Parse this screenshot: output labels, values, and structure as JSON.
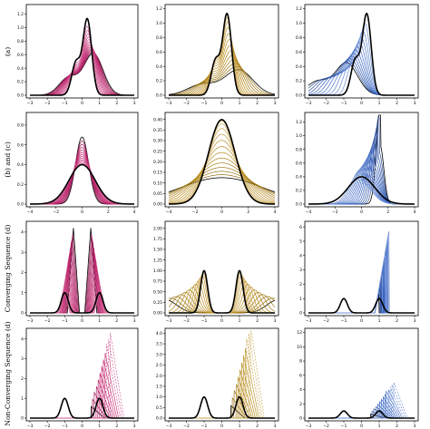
{
  "figure": {
    "row_labels": [
      "(a)",
      "(b) and (c)",
      "Converging Sequence (d)",
      "Non-Converging Sequence (d)"
    ],
    "colors": {
      "magenta": "#c2256f",
      "gold": "#b88a18",
      "blue": "#3a66c4",
      "black": "#000000"
    }
  },
  "chart_data": [
    {
      "type": "line",
      "row": 0,
      "col": 0,
      "color": "magenta",
      "xlim": [
        -3,
        3
      ],
      "ylim": [
        0,
        1.3
      ],
      "xticks": [
        -3,
        -2,
        -1,
        0,
        1,
        2,
        3
      ],
      "yticks": [
        0.0,
        0.2,
        0.4,
        0.6,
        0.8,
        1.0,
        1.2
      ],
      "ytick_labels": [
        "0.0",
        "0.2",
        "0.4",
        "0.6",
        "0.8",
        "1.0",
        "1.2"
      ],
      "target": "bimodal_a",
      "family": "sharpen",
      "series_count": 14
    },
    {
      "type": "line",
      "row": 0,
      "col": 1,
      "color": "gold",
      "xlim": [
        -3,
        3
      ],
      "ylim": [
        0,
        1.22
      ],
      "xticks": [
        -3,
        -2,
        -1,
        0,
        1,
        2,
        3
      ],
      "yticks": [
        0.0,
        0.2,
        0.4,
        0.6,
        0.8,
        1.0,
        1.2
      ],
      "ytick_labels": [
        "0.0",
        "0.2",
        "0.4",
        "0.6",
        "0.8",
        "1.0",
        "1.2"
      ],
      "target": "bimodal_a",
      "family": "broad_to_target",
      "series_count": 14
    },
    {
      "type": "line",
      "row": 0,
      "col": 2,
      "color": "blue",
      "xlim": [
        -3,
        3
      ],
      "ylim": [
        0,
        1.22
      ],
      "xticks": [
        -3,
        -2,
        -1,
        0,
        1,
        2,
        3
      ],
      "yticks": [
        0.0,
        0.2,
        0.4,
        0.6,
        0.8,
        1.0,
        1.2
      ],
      "ytick_labels": [
        "0.0",
        "0.2",
        "0.4",
        "0.6",
        "0.8",
        "1.0",
        "1.2"
      ],
      "target": "bimodal_a",
      "family": "shift_from_left",
      "series_count": 12
    },
    {
      "type": "line",
      "row": 1,
      "col": 0,
      "color": "magenta",
      "xlim": [
        -4,
        4
      ],
      "ylim": [
        0,
        0.9
      ],
      "xticks": [
        -4,
        -2,
        0,
        2,
        4
      ],
      "yticks": [
        0.0,
        0.2,
        0.4,
        0.6,
        0.8
      ],
      "ytick_labels": [
        "0.0",
        "0.2",
        "0.4",
        "0.6",
        "0.8"
      ],
      "target": "normal",
      "family": "narrow_to_normal",
      "series_count": 14
    },
    {
      "type": "line",
      "row": 1,
      "col": 1,
      "color": "gold",
      "xlim": [
        -4,
        4
      ],
      "ylim": [
        0,
        0.42
      ],
      "xticks": [
        -4,
        -2,
        0,
        2,
        4
      ],
      "yticks": [
        0.0,
        0.05,
        0.1,
        0.15,
        0.2,
        0.25,
        0.3,
        0.35,
        0.4
      ],
      "ytick_labels": [
        "0.00",
        "0.05",
        "0.10",
        "0.15",
        "0.20",
        "0.25",
        "0.30",
        "0.35",
        "0.40"
      ],
      "target": "normal",
      "family": "broad_to_target",
      "series_count": 14
    },
    {
      "type": "line",
      "row": 1,
      "col": 2,
      "color": "blue",
      "xlim": [
        -4,
        4
      ],
      "ylim": [
        0,
        1.3
      ],
      "xticks": [
        -4,
        -2,
        0,
        2,
        4
      ],
      "yticks": [
        0.0,
        0.2,
        0.4,
        0.6,
        0.8,
        1.0,
        1.2
      ],
      "ytick_labels": [
        "0.0",
        "0.2",
        "0.4",
        "0.6",
        "0.8",
        "1.0",
        "1.2"
      ],
      "target": "normal",
      "family": "spikes_right",
      "series_count": 16
    },
    {
      "type": "line",
      "row": 2,
      "col": 0,
      "color": "magenta",
      "xlim": [
        -3,
        3
      ],
      "ylim": [
        0,
        4.4
      ],
      "xticks": [
        -3,
        -2,
        -1,
        0,
        1,
        2,
        3
      ],
      "yticks": [
        0,
        1,
        2,
        3,
        4
      ],
      "ytick_labels": [
        "0",
        "1",
        "2",
        "3",
        "4"
      ],
      "target": "bimodal_d",
      "family": "walls_inward",
      "series_count": 14
    },
    {
      "type": "line",
      "row": 2,
      "col": 1,
      "color": "gold",
      "xlim": [
        -3,
        3
      ],
      "ylim": [
        0,
        2.1
      ],
      "xticks": [
        -3,
        -2,
        -1,
        0,
        1,
        2,
        3
      ],
      "yticks": [
        0.0,
        0.25,
        0.5,
        0.75,
        1.0,
        1.25,
        1.5,
        1.75,
        2.0
      ],
      "ytick_labels": [
        "0.00",
        "0.25",
        "0.50",
        "0.75",
        "1.00",
        "1.25",
        "1.50",
        "1.75",
        "2.00"
      ],
      "target": "bimodal_d",
      "family": "broad_to_target",
      "series_count": 14
    },
    {
      "type": "line",
      "row": 2,
      "col": 2,
      "color": "blue",
      "xlim": [
        -3,
        3
      ],
      "ylim": [
        0,
        6.2
      ],
      "xticks": [
        -3,
        -2,
        -1,
        0,
        1,
        2,
        3
      ],
      "yticks": [
        0,
        1,
        2,
        3,
        4,
        5,
        6
      ],
      "ytick_labels": [
        "0",
        "1",
        "2",
        "3",
        "4",
        "5",
        "6"
      ],
      "target": "bimodal_d",
      "family": "walls_outward",
      "series_count": 20
    },
    {
      "type": "line",
      "row": 3,
      "col": 0,
      "color": "magenta",
      "xlim": [
        -3,
        3
      ],
      "ylim": [
        0,
        4.4
      ],
      "xticks": [
        -3,
        -2,
        -1,
        0,
        1,
        2,
        3
      ],
      "yticks": [
        0,
        1,
        2,
        3,
        4
      ],
      "ytick_labels": [
        "0",
        "1",
        "2",
        "3",
        "4"
      ],
      "target": "bimodal_d",
      "family": "nonconv_ramp",
      "series_count": 12
    },
    {
      "type": "line",
      "row": 3,
      "col": 1,
      "color": "gold",
      "xlim": [
        -3,
        3
      ],
      "ylim": [
        0,
        4.1
      ],
      "xticks": [
        -3,
        -2,
        -1,
        0,
        1,
        2,
        3
      ],
      "yticks": [
        0.0,
        0.5,
        1.0,
        1.5,
        2.0,
        2.5,
        3.0,
        3.5,
        4.0
      ],
      "ytick_labels": [
        "0.0",
        "0.5",
        "1.0",
        "1.5",
        "2.0",
        "2.5",
        "3.0",
        "3.5",
        "4.0"
      ],
      "target": "bimodal_d",
      "family": "nonconv_ramp",
      "series_count": 12
    },
    {
      "type": "line",
      "row": 3,
      "col": 2,
      "color": "blue",
      "xlim": [
        -3,
        3
      ],
      "ylim": [
        0,
        12.2
      ],
      "xticks": [
        -3,
        -2,
        -1,
        0,
        1,
        2,
        3
      ],
      "yticks": [
        0,
        2,
        4,
        6,
        8,
        10,
        12
      ],
      "ytick_labels": [
        "0",
        "2",
        "4",
        "6",
        "8",
        "10",
        "12"
      ],
      "target": "bimodal_d",
      "family": "nonconv_ramp",
      "series_count": 14
    }
  ]
}
